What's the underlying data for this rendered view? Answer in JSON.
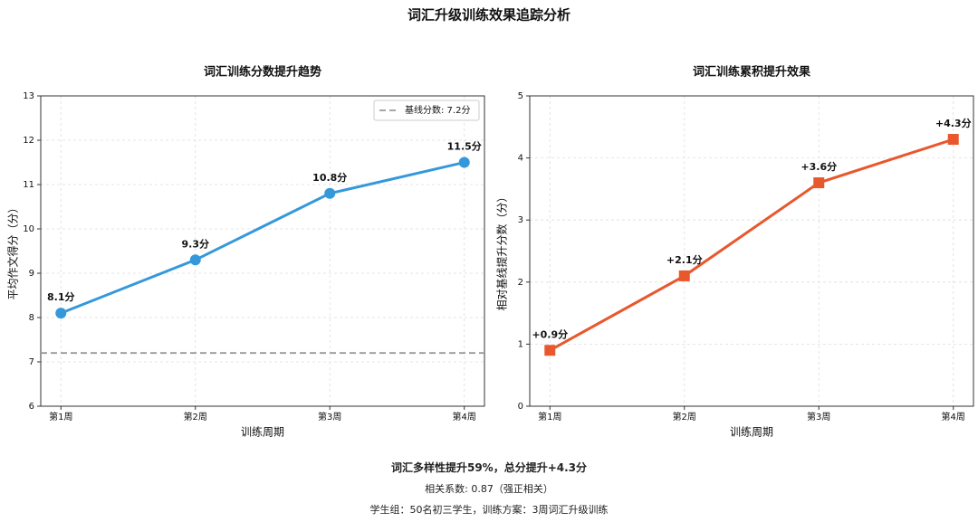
{
  "title": "词汇升级训练效果追踪分析",
  "notes": [
    "词汇多样性提升59%，总分提升+4.3分",
    "相关系数: 0.87（强正相关）",
    "学生组：50名初三学生，训练方案：3周词汇升级训练"
  ],
  "chart_data": [
    {
      "type": "line",
      "title": "词汇训练分数提升趋势",
      "x_label": "训练周期",
      "y_label": "平均作文得分（分）",
      "categories": [
        "第1周",
        "第2周",
        "第3周",
        "第4周"
      ],
      "series": [
        {
          "name": "平均作文得分",
          "color": "#3498db",
          "marker": "circle",
          "values": [
            8.1,
            9.3,
            10.8,
            11.5
          ],
          "value_labels": [
            "8.1分",
            "9.3分",
            "10.8分",
            "11.5分"
          ]
        }
      ],
      "reference_line": {
        "value": 7.2,
        "label": "基线分数: 7.2分",
        "color": "#999999"
      },
      "legend": "upper right",
      "ylim": [
        6,
        13
      ],
      "yticks": [
        6,
        7,
        8,
        9,
        10,
        11,
        12,
        13
      ],
      "grid": true
    },
    {
      "type": "line",
      "title": "词汇训练累积提升效果",
      "x_label": "训练周期",
      "y_label": "相对基线提升分数（分）",
      "categories": [
        "第1周",
        "第2周",
        "第3周",
        "第4周"
      ],
      "series": [
        {
          "name": "相对基线提升分数",
          "color": "#e8582c",
          "marker": "square",
          "values": [
            0.9,
            2.1,
            3.6,
            4.3
          ],
          "value_labels": [
            "+0.9分",
            "+2.1分",
            "+3.6分",
            "+4.3分"
          ]
        }
      ],
      "ylim": [
        0,
        5
      ],
      "yticks": [
        0,
        1,
        2,
        3,
        4,
        5
      ],
      "grid": true
    }
  ]
}
